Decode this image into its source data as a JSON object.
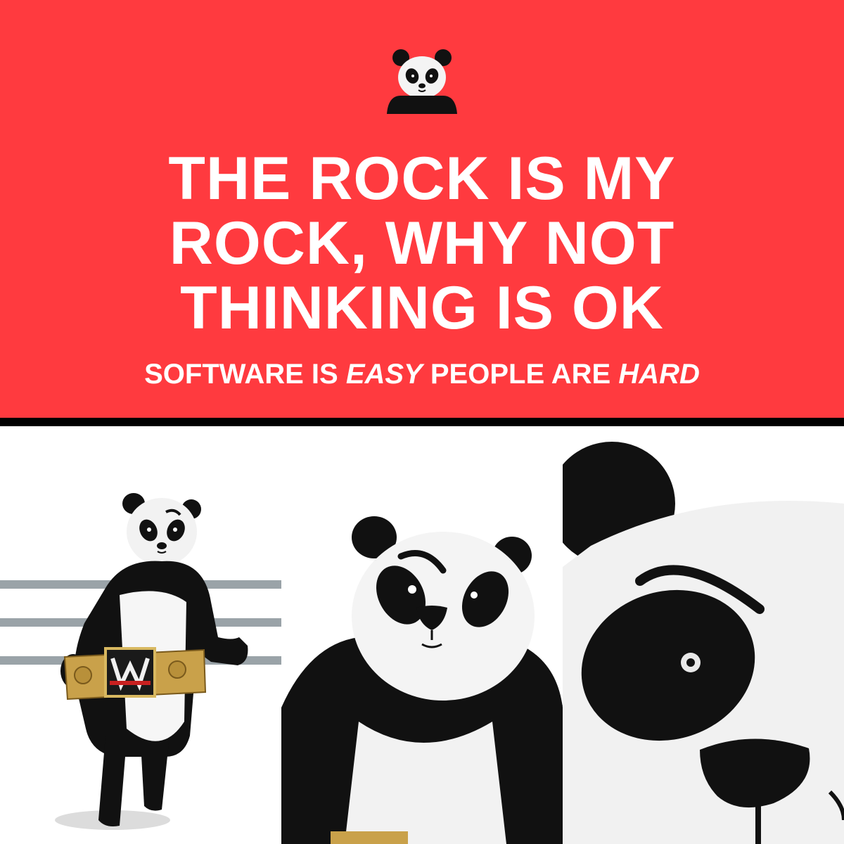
{
  "header": {
    "title_lines": [
      "THE ROCK IS MY",
      "ROCK, WHY NOT",
      "THINKING IS OK"
    ],
    "subtitle": {
      "part1": "SOFTWARE IS ",
      "emphasis1": "EASY",
      "part2": " PEOPLE ARE ",
      "emphasis2": "HARD"
    }
  },
  "colors": {
    "banner": "#ff3a3f",
    "divider": "#000000",
    "text": "#ffffff",
    "rope": "#9aa3a8",
    "belt_gold": "#c9a14a"
  },
  "logo": {
    "icon": "panda-logo-icon"
  },
  "panels": [
    {
      "icon": "panda-wrestler-full-icon"
    },
    {
      "icon": "panda-wrestler-medium-icon"
    },
    {
      "icon": "panda-face-closeup-icon"
    }
  ]
}
